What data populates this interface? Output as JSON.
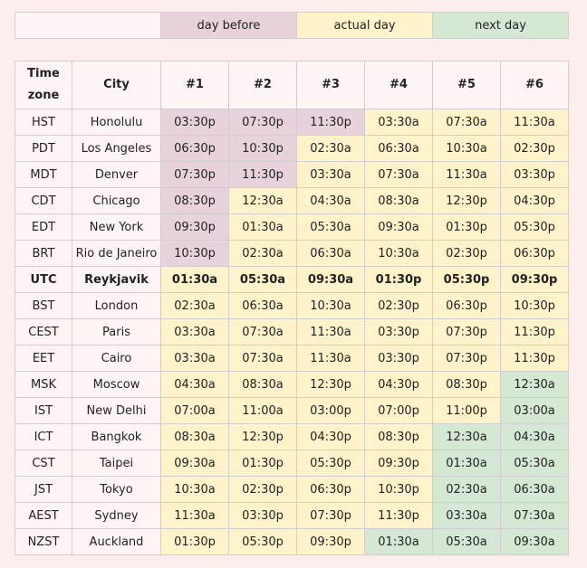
{
  "colors": {
    "before": "#e8d2dd",
    "actual": "#fef3cb",
    "next": "#d5e8d4",
    "plain": "#fff5f5"
  },
  "legend": {
    "before": "day before",
    "actual": "actual day",
    "next": "next day"
  },
  "table": {
    "headers": [
      "Time zone",
      "City",
      "#1",
      "#2",
      "#3",
      "#4",
      "#5",
      "#6"
    ],
    "rows": [
      {
        "tz": "HST",
        "city": "Honolulu",
        "times": [
          "03:30p",
          "07:30p",
          "11:30p",
          "03:30a",
          "07:30a",
          "11:30a"
        ],
        "days": [
          "b",
          "b",
          "b",
          "a",
          "a",
          "a"
        ]
      },
      {
        "tz": "PDT",
        "city": "Los Angeles",
        "times": [
          "06:30p",
          "10:30p",
          "02:30a",
          "06:30a",
          "10:30a",
          "02:30p"
        ],
        "days": [
          "b",
          "b",
          "a",
          "a",
          "a",
          "a"
        ]
      },
      {
        "tz": "MDT",
        "city": "Denver",
        "times": [
          "07:30p",
          "11:30p",
          "03:30a",
          "07:30a",
          "11:30a",
          "03:30p"
        ],
        "days": [
          "b",
          "b",
          "a",
          "a",
          "a",
          "a"
        ]
      },
      {
        "tz": "CDT",
        "city": "Chicago",
        "times": [
          "08:30p",
          "12:30a",
          "04:30a",
          "08:30a",
          "12:30p",
          "04:30p"
        ],
        "days": [
          "b",
          "a",
          "a",
          "a",
          "a",
          "a"
        ]
      },
      {
        "tz": "EDT",
        "city": "New York",
        "times": [
          "09:30p",
          "01:30a",
          "05:30a",
          "09:30a",
          "01:30p",
          "05:30p"
        ],
        "days": [
          "b",
          "a",
          "a",
          "a",
          "a",
          "a"
        ]
      },
      {
        "tz": "BRT",
        "city": "Rio de Janeiro",
        "times": [
          "10:30p",
          "02:30a",
          "06:30a",
          "10:30a",
          "02:30p",
          "06:30p"
        ],
        "days": [
          "b",
          "a",
          "a",
          "a",
          "a",
          "a"
        ]
      },
      {
        "tz": "UTC",
        "city": "Reykjavik",
        "times": [
          "01:30a",
          "05:30a",
          "09:30a",
          "01:30p",
          "05:30p",
          "09:30p"
        ],
        "days": [
          "a",
          "a",
          "a",
          "a",
          "a",
          "a"
        ],
        "bold": true
      },
      {
        "tz": "BST",
        "city": "London",
        "times": [
          "02:30a",
          "06:30a",
          "10:30a",
          "02:30p",
          "06:30p",
          "10:30p"
        ],
        "days": [
          "a",
          "a",
          "a",
          "a",
          "a",
          "a"
        ]
      },
      {
        "tz": "CEST",
        "city": "Paris",
        "times": [
          "03:30a",
          "07:30a",
          "11:30a",
          "03:30p",
          "07:30p",
          "11:30p"
        ],
        "days": [
          "a",
          "a",
          "a",
          "a",
          "a",
          "a"
        ]
      },
      {
        "tz": "EET",
        "city": "Cairo",
        "times": [
          "03:30a",
          "07:30a",
          "11:30a",
          "03:30p",
          "07:30p",
          "11:30p"
        ],
        "days": [
          "a",
          "a",
          "a",
          "a",
          "a",
          "a"
        ]
      },
      {
        "tz": "MSK",
        "city": "Moscow",
        "times": [
          "04:30a",
          "08:30a",
          "12:30p",
          "04:30p",
          "08:30p",
          "12:30a"
        ],
        "days": [
          "a",
          "a",
          "a",
          "a",
          "a",
          "n"
        ]
      },
      {
        "tz": "IST",
        "city": "New Delhi",
        "times": [
          "07:00a",
          "11:00a",
          "03:00p",
          "07:00p",
          "11:00p",
          "03:00a"
        ],
        "days": [
          "a",
          "a",
          "a",
          "a",
          "a",
          "n"
        ]
      },
      {
        "tz": "ICT",
        "city": "Bangkok",
        "times": [
          "08:30a",
          "12:30p",
          "04:30p",
          "08:30p",
          "12:30a",
          "04:30a"
        ],
        "days": [
          "a",
          "a",
          "a",
          "a",
          "n",
          "n"
        ]
      },
      {
        "tz": "CST",
        "city": "Taipei",
        "times": [
          "09:30a",
          "01:30p",
          "05:30p",
          "09:30p",
          "01:30a",
          "05:30a"
        ],
        "days": [
          "a",
          "a",
          "a",
          "a",
          "n",
          "n"
        ]
      },
      {
        "tz": "JST",
        "city": "Tokyo",
        "times": [
          "10:30a",
          "02:30p",
          "06:30p",
          "10:30p",
          "02:30a",
          "06:30a"
        ],
        "days": [
          "a",
          "a",
          "a",
          "a",
          "n",
          "n"
        ]
      },
      {
        "tz": "AEST",
        "city": "Sydney",
        "times": [
          "11:30a",
          "03:30p",
          "07:30p",
          "11:30p",
          "03:30a",
          "07:30a"
        ],
        "days": [
          "a",
          "a",
          "a",
          "a",
          "n",
          "n"
        ]
      },
      {
        "tz": "NZST",
        "city": "Auckland",
        "times": [
          "01:30p",
          "05:30p",
          "09:30p",
          "01:30a",
          "05:30a",
          "09:30a"
        ],
        "days": [
          "a",
          "a",
          "a",
          "n",
          "n",
          "n"
        ]
      }
    ]
  }
}
